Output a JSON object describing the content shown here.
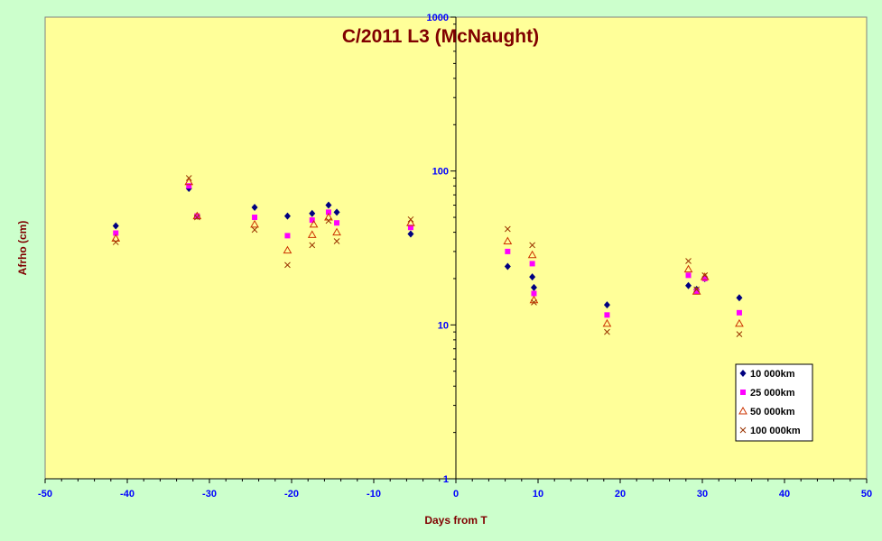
{
  "chart_data": {
    "type": "scatter",
    "title": "C/2011 L3 (McNaught)",
    "xlabel": "Days from T",
    "ylabel": "Afrho (cm)",
    "xlim": [
      -50,
      50
    ],
    "ylim": [
      1,
      1000
    ],
    "yscale": "log",
    "xticks": [
      "-50",
      "-40",
      "-30",
      "-20",
      "-10",
      "0",
      "10",
      "20",
      "30",
      "40",
      "50"
    ],
    "yticks": [
      "1",
      "10",
      "100",
      "1000"
    ],
    "grid": false,
    "legend_position": "bottom-right",
    "colors": {
      "plot_background": "#ffff99",
      "page_background": "#ccffcc",
      "title": "#800000",
      "axis_title": "#800000",
      "tick_label": "#0000ff",
      "axis_line": "#000000"
    },
    "series": [
      {
        "name": "10 000km",
        "marker": "diamond",
        "color": "#000080",
        "points": [
          [
            -41.4,
            44
          ],
          [
            -32.5,
            77
          ],
          [
            -31.5,
            51
          ],
          [
            -24.5,
            58
          ],
          [
            -20.5,
            51
          ],
          [
            -17.5,
            53
          ],
          [
            -15.5,
            60
          ],
          [
            -14.5,
            54
          ],
          [
            -5.5,
            39
          ],
          [
            6.3,
            24
          ],
          [
            9.3,
            20.5
          ],
          [
            9.5,
            17.5
          ],
          [
            18.4,
            13.5
          ],
          [
            28.3,
            18
          ],
          [
            29.3,
            17
          ],
          [
            30.3,
            20
          ],
          [
            34.5,
            15
          ]
        ]
      },
      {
        "name": "25 000km",
        "marker": "square",
        "color": "#ff00ff",
        "points": [
          [
            -41.4,
            39.5
          ],
          [
            -32.5,
            80
          ],
          [
            -31.5,
            51
          ],
          [
            -24.5,
            50
          ],
          [
            -20.5,
            38
          ],
          [
            -17.5,
            48
          ],
          [
            -15.5,
            54
          ],
          [
            -14.5,
            46
          ],
          [
            -5.5,
            43
          ],
          [
            6.3,
            30
          ],
          [
            9.3,
            25
          ],
          [
            9.5,
            16
          ],
          [
            18.4,
            11.6
          ],
          [
            28.3,
            21
          ],
          [
            29.3,
            16.5
          ],
          [
            30.3,
            20
          ],
          [
            34.5,
            12
          ]
        ]
      },
      {
        "name": "50 000km",
        "marker": "triangle",
        "color": "#cc3300",
        "points": [
          [
            -41.4,
            36.5
          ],
          [
            -32.5,
            85
          ],
          [
            -31.5,
            51
          ],
          [
            -24.5,
            45
          ],
          [
            -20.5,
            30.5
          ],
          [
            -17.5,
            38.5
          ],
          [
            -17.3,
            45
          ],
          [
            -15.5,
            50
          ],
          [
            -14.5,
            40
          ],
          [
            -5.5,
            46
          ],
          [
            6.3,
            35
          ],
          [
            9.3,
            28.5
          ],
          [
            9.5,
            14.5
          ],
          [
            18.4,
            10.2
          ],
          [
            28.3,
            23
          ],
          [
            29.3,
            16.5
          ],
          [
            30.3,
            20.5
          ],
          [
            34.5,
            10.2
          ]
        ]
      },
      {
        "name": "100 000km",
        "marker": "x",
        "color": "#993300",
        "points": [
          [
            -41.4,
            34.5
          ],
          [
            -32.5,
            90
          ],
          [
            -31.5,
            50
          ],
          [
            -24.5,
            41.5
          ],
          [
            -20.5,
            24.5
          ],
          [
            -17.5,
            33
          ],
          [
            -15.5,
            47.5
          ],
          [
            -14.5,
            35
          ],
          [
            -5.5,
            48.5
          ],
          [
            6.3,
            42
          ],
          [
            9.3,
            33
          ],
          [
            9.5,
            14
          ],
          [
            18.4,
            9
          ],
          [
            28.3,
            26
          ],
          [
            29.3,
            17
          ],
          [
            30.3,
            21
          ],
          [
            34.5,
            8.7
          ]
        ]
      }
    ]
  }
}
